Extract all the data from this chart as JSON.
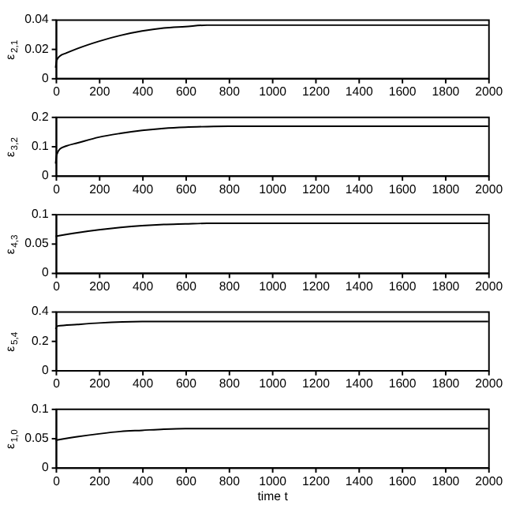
{
  "chart_data": [
    {
      "type": "line",
      "ylabel": "ε$_{2,1}$",
      "x": [
        0,
        5,
        20,
        50,
        100,
        200,
        300,
        400,
        500,
        600,
        700,
        800,
        2000
      ],
      "series": [
        {
          "color": "#000000",
          "values": [
            0.007,
            0.012,
            0.015,
            0.017,
            0.02,
            0.025,
            0.029,
            0.032,
            0.034,
            0.035,
            0.036,
            0.036,
            0.036
          ]
        }
      ],
      "xlim": [
        0,
        2000
      ],
      "xticks": [
        0,
        200,
        400,
        600,
        800,
        1000,
        1200,
        1400,
        1600,
        1800,
        2000
      ],
      "ylim": [
        0,
        0.04
      ],
      "yticks": [
        0,
        0.02,
        0.04
      ],
      "grid": false,
      "legend": false
    },
    {
      "type": "line",
      "ylabel": "ε$_{3,2}$",
      "x": [
        0,
        5,
        20,
        50,
        100,
        200,
        300,
        400,
        500,
        600,
        700,
        800,
        2000
      ],
      "series": [
        {
          "color": "#000000",
          "values": [
            0.04,
            0.07,
            0.09,
            0.1,
            0.11,
            0.13,
            0.143,
            0.153,
            0.16,
            0.164,
            0.166,
            0.167,
            0.167
          ]
        }
      ],
      "xlim": [
        0,
        2000
      ],
      "xticks": [
        0,
        200,
        400,
        600,
        800,
        1000,
        1200,
        1400,
        1600,
        1800,
        2000
      ],
      "ylim": [
        0,
        0.2
      ],
      "yticks": [
        0,
        0.1,
        0.2
      ],
      "grid": false,
      "legend": false
    },
    {
      "type": "line",
      "ylabel": "ε$_{4,3}$",
      "x": [
        0,
        100,
        200,
        300,
        400,
        500,
        600,
        700,
        2000
      ],
      "series": [
        {
          "color": "#000000",
          "values": [
            0.062,
            0.068,
            0.073,
            0.077,
            0.08,
            0.082,
            0.083,
            0.084,
            0.084
          ]
        }
      ],
      "xlim": [
        0,
        2000
      ],
      "xticks": [
        0,
        200,
        400,
        600,
        800,
        1000,
        1200,
        1400,
        1600,
        1800,
        2000
      ],
      "ylim": [
        0,
        0.1
      ],
      "yticks": [
        0,
        0.05,
        0.1
      ],
      "grid": false,
      "legend": false
    },
    {
      "type": "line",
      "ylabel": "ε$_{5,4}$",
      "x": [
        0,
        10,
        100,
        200,
        400,
        600,
        800,
        1000,
        2000
      ],
      "series": [
        {
          "color": "#000000",
          "values": [
            0.28,
            0.3,
            0.31,
            0.32,
            0.33,
            0.33,
            0.33,
            0.33,
            0.33
          ]
        }
      ],
      "xlim": [
        0,
        2000
      ],
      "xticks": [
        0,
        200,
        400,
        600,
        800,
        1000,
        1200,
        1400,
        1600,
        1800,
        2000
      ],
      "ylim": [
        0,
        0.4
      ],
      "yticks": [
        0,
        0.2,
        0.4
      ],
      "grid": false,
      "legend": false
    },
    {
      "type": "line",
      "ylabel": "ε$_{1,0}$",
      "xlabel": "time t",
      "x": [
        0,
        100,
        200,
        300,
        400,
        500,
        600,
        700,
        2000
      ],
      "series": [
        {
          "color": "#000000",
          "values": [
            0.046,
            0.052,
            0.057,
            0.061,
            0.063,
            0.065,
            0.066,
            0.066,
            0.066
          ]
        }
      ],
      "xlim": [
        0,
        2000
      ],
      "xticks": [
        0,
        200,
        400,
        600,
        800,
        1000,
        1200,
        1400,
        1600,
        1800,
        2000
      ],
      "ylim": [
        0,
        0.1
      ],
      "yticks": [
        0,
        0.05,
        0.1
      ],
      "grid": false,
      "legend": false
    }
  ]
}
